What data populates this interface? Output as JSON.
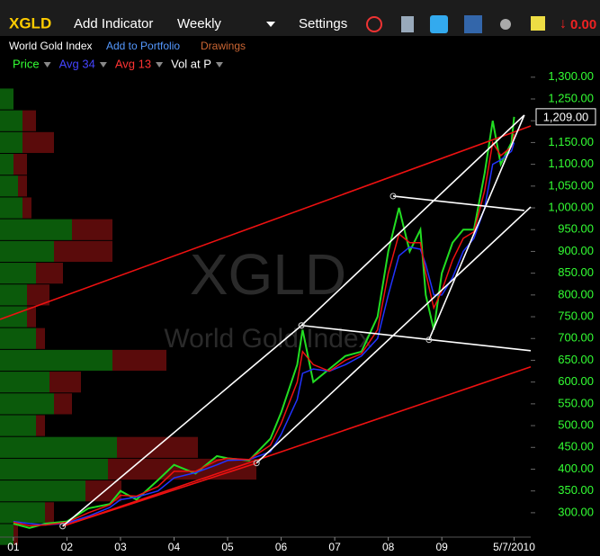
{
  "toolbar": {
    "symbol": "XGLD",
    "add_indicator": "Add Indicator",
    "interval": "Weekly",
    "settings": "Settings",
    "change": "0.00"
  },
  "subbar": {
    "name": "World Gold Index",
    "add_portfolio": "Add to Portfolio",
    "drawings": "Drawings"
  },
  "indicators": [
    "Price",
    "Avg 34",
    "Avg 13",
    "Vol at P"
  ],
  "chart_data": {
    "type": "line",
    "title": "XGLD",
    "subtitle": "World Gold Index",
    "x": [
      2001.0,
      2001.3,
      2001.6,
      2002.0,
      2002.4,
      2002.8,
      2003.0,
      2003.3,
      2003.7,
      2004.0,
      2004.4,
      2004.8,
      2005.0,
      2005.4,
      2005.8,
      2006.0,
      2006.3,
      2006.4,
      2006.6,
      2006.9,
      2007.2,
      2007.5,
      2007.8,
      2008.0,
      2008.2,
      2008.4,
      2008.6,
      2008.7,
      2008.85,
      2009.0,
      2009.2,
      2009.4,
      2009.6,
      2009.8,
      2009.95,
      2010.1,
      2010.3,
      2010.35
    ],
    "series": [
      {
        "name": "Price",
        "color": "#22dd22",
        "values": [
          275,
          265,
          275,
          280,
          310,
          320,
          350,
          330,
          375,
          410,
          390,
          430,
          425,
          420,
          470,
          530,
          640,
          720,
          600,
          630,
          660,
          670,
          750,
          900,
          1000,
          900,
          950,
          800,
          720,
          850,
          920,
          950,
          950,
          1080,
          1200,
          1100,
          1150,
          1209
        ]
      },
      {
        "name": "Avg 34",
        "color": "#2233ff",
        "values": [
          280,
          275,
          272,
          276,
          292,
          312,
          330,
          336,
          350,
          380,
          392,
          410,
          420,
          422,
          440,
          480,
          560,
          620,
          630,
          625,
          640,
          660,
          700,
          800,
          890,
          910,
          905,
          870,
          800,
          800,
          840,
          900,
          930,
          1000,
          1100,
          1110,
          1130,
          1150
        ]
      },
      {
        "name": "Avg 13",
        "color": "#ee1111",
        "values": [
          278,
          270,
          272,
          278,
          300,
          318,
          340,
          338,
          360,
          395,
          395,
          420,
          425,
          422,
          455,
          505,
          600,
          670,
          640,
          625,
          650,
          665,
          720,
          850,
          940,
          920,
          920,
          850,
          770,
          810,
          880,
          930,
          945,
          1040,
          1150,
          1120,
          1140,
          1170
        ]
      }
    ],
    "last_value": 1209,
    "last_label": "1,209.00",
    "xlim": [
      2000.75,
      2010.66
    ],
    "xticks": [
      {
        "value": 2001,
        "label": "01"
      },
      {
        "value": 2002,
        "label": "02"
      },
      {
        "value": 2003,
        "label": "03"
      },
      {
        "value": 2004,
        "label": "04"
      },
      {
        "value": 2005,
        "label": "05"
      },
      {
        "value": 2006,
        "label": "06"
      },
      {
        "value": 2007,
        "label": "07"
      },
      {
        "value": 2008,
        "label": "08"
      },
      {
        "value": 2009,
        "label": "09"
      },
      {
        "value": 2010.35,
        "label": "5/7/2010"
      }
    ],
    "ylim": [
      244,
      1312
    ],
    "yticks": [
      {
        "value": 300,
        "label": "300.00"
      },
      {
        "value": 350,
        "label": "350.00"
      },
      {
        "value": 400,
        "label": "400.00"
      },
      {
        "value": 450,
        "label": "450.00"
      },
      {
        "value": 500,
        "label": "500.00"
      },
      {
        "value": 550,
        "label": "550.00"
      },
      {
        "value": 600,
        "label": "600.00"
      },
      {
        "value": 650,
        "label": "650.00"
      },
      {
        "value": 700,
        "label": "700.00"
      },
      {
        "value": 750,
        "label": "750.00"
      },
      {
        "value": 800,
        "label": "800.00"
      },
      {
        "value": 850,
        "label": "850.00"
      },
      {
        "value": 900,
        "label": "900.00"
      },
      {
        "value": 950,
        "label": "950.00"
      },
      {
        "value": 1000,
        "label": "1,000.00"
      },
      {
        "value": 1050,
        "label": "1,050.00"
      },
      {
        "value": 1100,
        "label": "1,100.00"
      },
      {
        "value": 1150,
        "label": "1,150.00"
      },
      {
        "value": 1200,
        "label": "1,200.00"
      },
      {
        "value": 1250,
        "label": "1,250.00"
      },
      {
        "value": 1300,
        "label": "1,300.00"
      }
    ],
    "volume_at_price": {
      "levels": [
        1250,
        1200,
        1150,
        1100,
        1050,
        1000,
        950,
        900,
        850,
        800,
        750,
        700,
        650,
        600,
        550,
        500,
        450,
        400,
        350,
        300,
        250
      ],
      "up": [
        15,
        25,
        25,
        15,
        20,
        25,
        80,
        60,
        40,
        30,
        30,
        40,
        125,
        55,
        60,
        40,
        130,
        120,
        95,
        50,
        15
      ],
      "down": [
        0,
        15,
        35,
        15,
        10,
        10,
        45,
        65,
        30,
        25,
        10,
        10,
        60,
        35,
        20,
        10,
        90,
        165,
        40,
        10,
        5
      ],
      "up_color": "#0b5a0b",
      "down_color": "#5a0b0b",
      "vlim": [
        0,
        590
      ]
    },
    "drawings": [
      {
        "color": "#ee1111",
        "points": [
          [
            2000.75,
            744
          ],
          [
            2010.66,
            1188
          ]
        ]
      },
      {
        "color": "#ee1111",
        "points": [
          [
            2001.92,
            269
          ],
          [
            2010.66,
            635
          ]
        ]
      },
      {
        "color": "#ee1111",
        "points": [
          [
            2001.92,
            269
          ],
          [
            2005.54,
            414
          ]
        ]
      },
      {
        "color": "#ffffff",
        "points": [
          [
            2001.92,
            269
          ],
          [
            2006.38,
            730
          ]
        ]
      },
      {
        "color": "#ffffff",
        "points": [
          [
            2005.54,
            414
          ],
          [
            2010.66,
            1002
          ]
        ]
      },
      {
        "color": "#ffffff",
        "points": [
          [
            2006.38,
            730
          ],
          [
            2010.66,
            672
          ]
        ]
      },
      {
        "color": "#ffffff",
        "points": [
          [
            2008.09,
            1027
          ],
          [
            2010.54,
            994
          ]
        ]
      },
      {
        "color": "#ffffff",
        "points": [
          [
            2006.38,
            730
          ],
          [
            2010.54,
            1213
          ]
        ]
      },
      {
        "color": "#ffffff",
        "points": [
          [
            2008.76,
            697
          ],
          [
            2010.54,
            1213
          ]
        ]
      }
    ]
  }
}
